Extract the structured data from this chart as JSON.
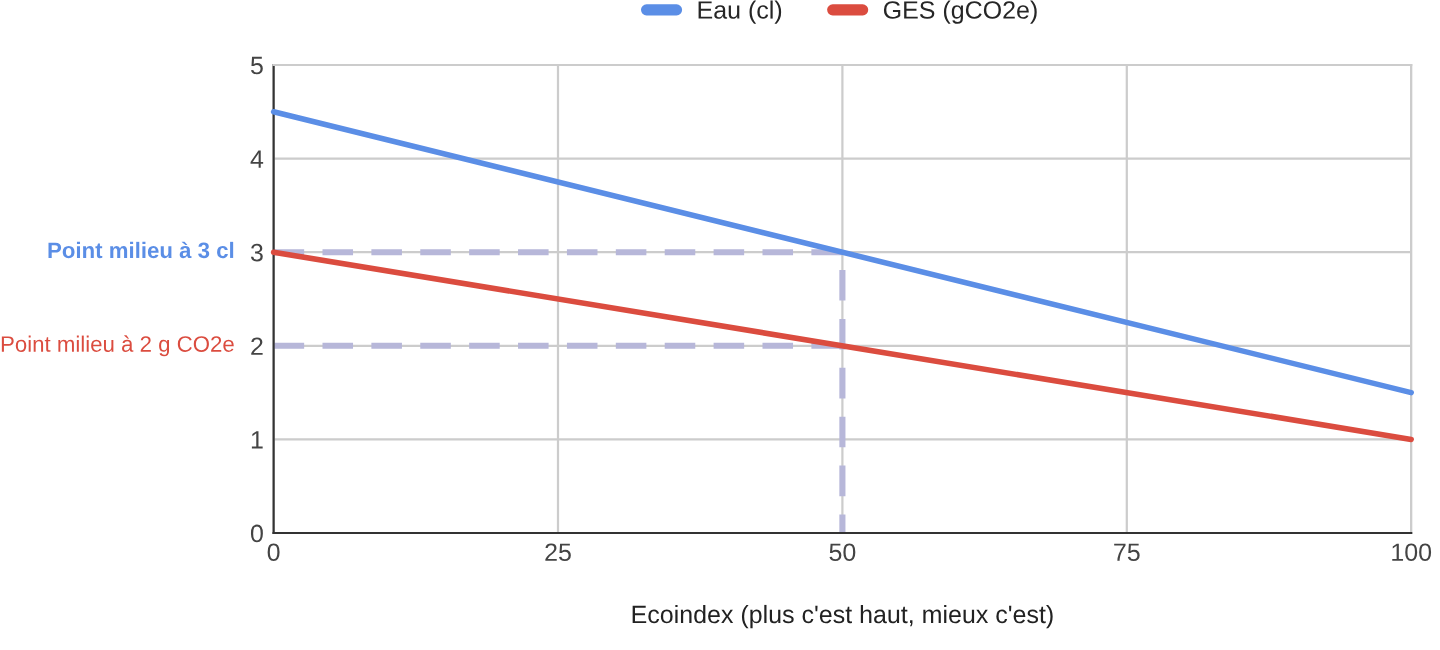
{
  "chart_data": {
    "type": "line",
    "xlabel": "Ecoindex (plus c'est haut, mieux c'est)",
    "xlim": [
      0,
      100
    ],
    "xticks": [
      0,
      25,
      50,
      75,
      100
    ],
    "ylim": [
      0,
      5
    ],
    "yticks": [
      0,
      1,
      2,
      3,
      4,
      5
    ],
    "grid": true,
    "legend": "top",
    "marker": "none",
    "series": [
      {
        "name": "Eau (cl)",
        "color": "#5b8ee6",
        "x": [
          0,
          100
        ],
        "values": [
          4.5,
          1.5
        ],
        "line_style": "solid"
      },
      {
        "name": "GES (gCO2e)",
        "color": "#db4c3f",
        "x": [
          0,
          100
        ],
        "values": [
          3,
          1
        ],
        "line_style": "solid"
      },
      {
        "color": "#b7b7d9",
        "x": [
          0,
          50,
          50
        ],
        "values": [
          3,
          3,
          0
        ],
        "line_style": "dashed"
      },
      {
        "color": "#b7b7d9",
        "x": [
          0,
          50
        ],
        "values": [
          2,
          2
        ],
        "line_style": "dashed"
      }
    ],
    "annotations": [
      {
        "text": "Point milieu à 3 cl",
        "x": 0,
        "y": 3
      },
      {
        "text": "Point milieu à 2 g CO2e",
        "x": 0,
        "y": 2
      }
    ]
  }
}
